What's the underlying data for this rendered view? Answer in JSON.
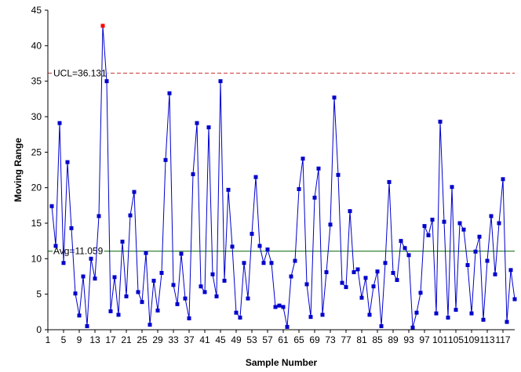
{
  "chart_data": {
    "type": "line",
    "title": "",
    "xlabel": "Sample Number",
    "ylabel": "Moving Range",
    "xlim": [
      1,
      119
    ],
    "ylim": [
      0,
      45
    ],
    "y_ticks": [
      0,
      5,
      10,
      15,
      20,
      25,
      30,
      35,
      40,
      45
    ],
    "x_ticks": [
      1,
      5,
      9,
      13,
      17,
      21,
      25,
      29,
      33,
      37,
      41,
      45,
      49,
      53,
      57,
      61,
      65,
      69,
      73,
      77,
      81,
      85,
      89,
      93,
      97,
      101,
      105,
      109,
      113,
      117
    ],
    "series_color": "#0000CC",
    "highlight_color": "#FF0000",
    "grid": false,
    "legend": "none",
    "reference_lines": [
      {
        "label": "UCL=36.131",
        "value": 36.131,
        "color": "#CC3333",
        "style": "dashed"
      },
      {
        "label": "Avg=11.059",
        "value": 11.059,
        "color": "#006600",
        "style": "solid"
      }
    ],
    "series": [
      {
        "x_start": 2,
        "values": [
          17.4,
          11.8,
          29.1,
          9.4,
          23.6,
          14.3,
          5.1,
          2.0,
          7.5,
          0.5,
          10.0,
          7.2,
          16.0,
          42.8,
          35.0,
          2.6,
          7.4,
          2.1,
          12.4,
          4.7,
          16.1,
          19.4,
          5.3,
          3.9,
          10.8,
          0.7,
          6.9,
          2.7,
          8.0,
          23.9,
          33.3,
          6.3,
          3.6,
          10.7,
          4.4,
          1.6,
          21.9,
          29.1,
          6.1,
          5.3,
          28.5,
          7.8,
          4.7,
          35.0,
          6.9,
          19.7,
          11.7,
          2.4,
          1.7,
          9.4,
          4.4,
          13.5,
          21.5,
          11.8,
          9.4,
          11.3,
          9.4,
          3.2,
          3.4,
          3.2,
          0.4,
          7.5,
          9.7,
          19.8,
          24.1,
          6.4,
          1.8,
          18.6,
          22.7,
          2.1,
          8.1,
          14.8,
          32.7,
          21.8,
          6.6,
          6.0,
          16.7,
          8.1,
          8.5,
          4.5,
          7.3,
          2.1,
          6.1,
          8.2,
          0.5,
          9.4,
          20.8,
          8.0,
          7.0,
          12.5,
          11.5,
          10.5,
          0.3,
          2.4,
          5.2,
          14.6,
          13.3,
          15.5,
          2.3,
          29.3,
          15.2,
          1.7,
          20.1,
          2.8,
          15.0,
          14.1,
          9.1,
          2.3,
          11.0,
          13.1,
          1.4,
          9.7,
          16.0,
          7.8,
          15.0,
          21.2,
          1.1,
          8.4,
          4.3
        ],
        "highlight_index": 13
      }
    ]
  }
}
